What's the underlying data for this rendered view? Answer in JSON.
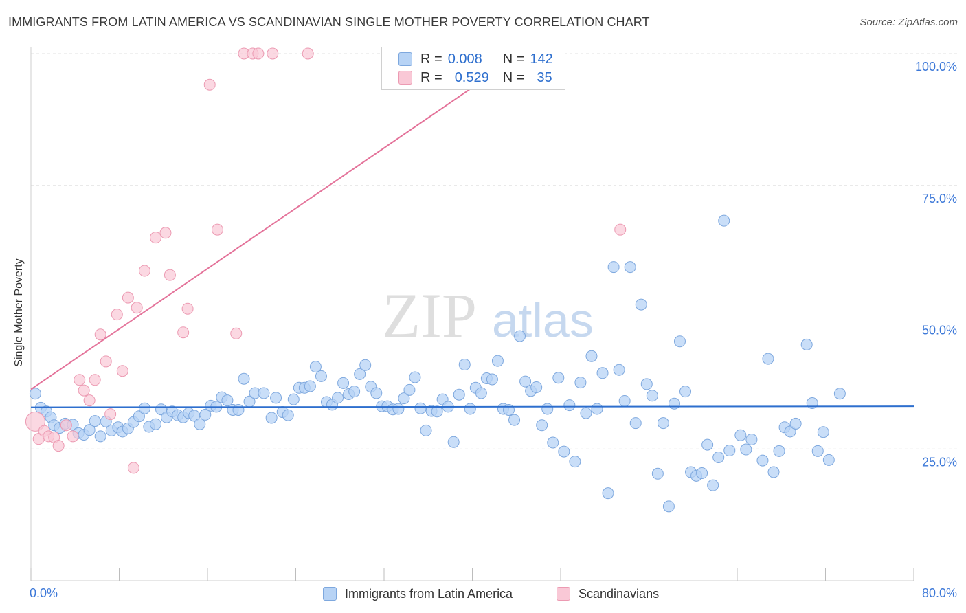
{
  "header": {
    "title": "IMMIGRANTS FROM LATIN AMERICA VS SCANDINAVIAN SINGLE MOTHER POVERTY CORRELATION CHART",
    "source": "Source: ZipAtlas.com"
  },
  "watermark": {
    "zip": "ZIP",
    "atlas": "atlas"
  },
  "legend": {
    "r_label": "R =",
    "n_label": "N =",
    "series": [
      {
        "name": "Immigrants from Latin America",
        "r": "0.008",
        "n": "142"
      },
      {
        "name": "Scandinavians",
        "r": "0.529",
        "n": "35"
      }
    ]
  },
  "colors": {
    "blue_fill": "#b7d3f5",
    "blue_stroke": "#7ea8de",
    "blue_line": "#2e6fce",
    "pink_fill": "#f9c8d6",
    "pink_stroke": "#ec9ab2",
    "pink_line": "#e4739a",
    "tick_text": "#3c78d8"
  },
  "chart_data": {
    "type": "scatter",
    "title": "IMMIGRANTS FROM LATIN AMERICA VS SCANDINAVIAN SINGLE MOTHER POVERTY CORRELATION CHART",
    "xlabel": "",
    "ylabel": "Single Mother Poverty",
    "xlim": [
      0,
      80
    ],
    "ylim": [
      0,
      100
    ],
    "x_tick_labels": [
      "0.0%",
      "80.0%"
    ],
    "y_ticks": [
      25,
      50,
      75,
      100
    ],
    "y_tick_labels": [
      "25.0%",
      "50.0%",
      "75.0%",
      "100.0%"
    ],
    "grid": true,
    "legend_position": "top-center",
    "series": [
      {
        "name": "Immigrants from Latin America",
        "r": 0.008,
        "n": 142,
        "trend": {
          "x": [
            0,
            80
          ],
          "y": [
            32.9,
            33.1
          ]
        },
        "points": [
          [
            0.4,
            35.5
          ],
          [
            0.9,
            32.8
          ],
          [
            1.4,
            32.1
          ],
          [
            1.8,
            31.0
          ],
          [
            2.1,
            29.5
          ],
          [
            2.6,
            29.0
          ],
          [
            3.1,
            29.8
          ],
          [
            3.8,
            29.6
          ],
          [
            4.3,
            28.0
          ],
          [
            4.8,
            27.7
          ],
          [
            5.3,
            28.6
          ],
          [
            5.8,
            30.3
          ],
          [
            6.3,
            27.4
          ],
          [
            6.8,
            30.2
          ],
          [
            7.3,
            28.5
          ],
          [
            7.9,
            29.1
          ],
          [
            8.3,
            28.3
          ],
          [
            8.8,
            28.9
          ],
          [
            9.3,
            30.1
          ],
          [
            9.8,
            31.2
          ],
          [
            10.3,
            32.7
          ],
          [
            10.7,
            29.2
          ],
          [
            11.3,
            29.7
          ],
          [
            11.8,
            32.5
          ],
          [
            12.3,
            31.0
          ],
          [
            12.8,
            32.1
          ],
          [
            13.3,
            31.4
          ],
          [
            13.8,
            31.0
          ],
          [
            14.3,
            31.8
          ],
          [
            14.8,
            31.3
          ],
          [
            15.3,
            29.7
          ],
          [
            15.8,
            31.5
          ],
          [
            16.3,
            33.2
          ],
          [
            16.8,
            33.0
          ],
          [
            17.3,
            34.8
          ],
          [
            17.8,
            34.2
          ],
          [
            18.3,
            32.4
          ],
          [
            18.8,
            32.4
          ],
          [
            19.3,
            38.3
          ],
          [
            19.8,
            34.0
          ],
          [
            20.3,
            35.6
          ],
          [
            21.1,
            35.6
          ],
          [
            21.8,
            30.9
          ],
          [
            22.2,
            34.7
          ],
          [
            22.8,
            32.0
          ],
          [
            23.3,
            31.4
          ],
          [
            23.8,
            34.4
          ],
          [
            24.3,
            36.6
          ],
          [
            24.8,
            36.6
          ],
          [
            25.3,
            36.9
          ],
          [
            25.8,
            40.6
          ],
          [
            26.3,
            38.8
          ],
          [
            26.8,
            33.9
          ],
          [
            27.3,
            33.4
          ],
          [
            27.8,
            34.7
          ],
          [
            28.3,
            37.5
          ],
          [
            28.8,
            35.4
          ],
          [
            29.3,
            35.9
          ],
          [
            29.8,
            39.2
          ],
          [
            30.3,
            40.9
          ],
          [
            30.8,
            36.8
          ],
          [
            31.3,
            35.6
          ],
          [
            31.8,
            33.1
          ],
          [
            32.3,
            33.1
          ],
          [
            32.8,
            32.5
          ],
          [
            33.3,
            32.6
          ],
          [
            33.8,
            34.6
          ],
          [
            34.3,
            36.2
          ],
          [
            34.8,
            38.6
          ],
          [
            35.3,
            32.7
          ],
          [
            35.8,
            28.5
          ],
          [
            36.3,
            32.2
          ],
          [
            36.8,
            32.1
          ],
          [
            37.3,
            34.4
          ],
          [
            37.8,
            33.0
          ],
          [
            38.3,
            26.3
          ],
          [
            38.8,
            35.3
          ],
          [
            39.3,
            41.0
          ],
          [
            39.8,
            32.6
          ],
          [
            40.3,
            36.6
          ],
          [
            40.8,
            35.6
          ],
          [
            41.3,
            38.4
          ],
          [
            41.8,
            38.2
          ],
          [
            42.3,
            41.7
          ],
          [
            42.8,
            32.6
          ],
          [
            43.3,
            32.4
          ],
          [
            43.8,
            30.5
          ],
          [
            44.3,
            46.4
          ],
          [
            44.8,
            37.8
          ],
          [
            45.3,
            36.0
          ],
          [
            45.8,
            36.7
          ],
          [
            46.3,
            29.5
          ],
          [
            46.8,
            32.6
          ],
          [
            47.3,
            26.2
          ],
          [
            47.8,
            38.5
          ],
          [
            48.3,
            24.5
          ],
          [
            48.8,
            33.3
          ],
          [
            49.3,
            22.6
          ],
          [
            49.8,
            37.6
          ],
          [
            50.3,
            31.8
          ],
          [
            50.8,
            42.6
          ],
          [
            51.3,
            32.6
          ],
          [
            51.8,
            39.4
          ],
          [
            52.3,
            16.6
          ],
          [
            52.8,
            59.5
          ],
          [
            53.3,
            40.0
          ],
          [
            53.8,
            34.1
          ],
          [
            54.3,
            59.5
          ],
          [
            54.8,
            29.9
          ],
          [
            55.3,
            52.4
          ],
          [
            55.8,
            37.3
          ],
          [
            56.3,
            35.1
          ],
          [
            56.8,
            20.3
          ],
          [
            57.3,
            29.9
          ],
          [
            57.8,
            14.1
          ],
          [
            58.3,
            33.6
          ],
          [
            58.8,
            45.4
          ],
          [
            59.3,
            35.9
          ],
          [
            59.8,
            20.6
          ],
          [
            60.3,
            19.9
          ],
          [
            60.8,
            20.4
          ],
          [
            61.3,
            25.8
          ],
          [
            61.8,
            18.1
          ],
          [
            62.3,
            23.4
          ],
          [
            62.8,
            68.3
          ],
          [
            63.3,
            24.7
          ],
          [
            64.3,
            27.6
          ],
          [
            64.8,
            24.9
          ],
          [
            65.3,
            26.8
          ],
          [
            66.3,
            22.8
          ],
          [
            66.8,
            42.1
          ],
          [
            67.3,
            20.6
          ],
          [
            67.8,
            24.6
          ],
          [
            68.3,
            29.1
          ],
          [
            68.8,
            28.3
          ],
          [
            69.3,
            29.8
          ],
          [
            70.3,
            44.8
          ],
          [
            70.8,
            33.7
          ],
          [
            71.3,
            24.6
          ],
          [
            71.8,
            28.2
          ],
          [
            72.3,
            22.9
          ],
          [
            73.3,
            35.5
          ]
        ]
      },
      {
        "name": "Scandinavians",
        "r": 0.529,
        "n": 35,
        "trend": {
          "x": [
            0,
            44.5
          ],
          "y": [
            36.3,
            100
          ]
        },
        "points": [
          [
            0.4,
            30.2
          ],
          [
            0.7,
            26.9
          ],
          [
            1.2,
            28.4
          ],
          [
            1.6,
            27.4
          ],
          [
            2.1,
            27.2
          ],
          [
            2.5,
            25.6
          ],
          [
            3.2,
            29.5
          ],
          [
            3.8,
            27.4
          ],
          [
            4.4,
            38.1
          ],
          [
            4.8,
            36.1
          ],
          [
            5.3,
            34.2
          ],
          [
            5.8,
            38.1
          ],
          [
            6.3,
            46.7
          ],
          [
            6.8,
            41.6
          ],
          [
            7.2,
            31.6
          ],
          [
            7.8,
            50.5
          ],
          [
            8.3,
            39.8
          ],
          [
            8.8,
            53.7
          ],
          [
            9.3,
            21.4
          ],
          [
            9.6,
            51.8
          ],
          [
            10.3,
            58.8
          ],
          [
            11.3,
            65.1
          ],
          [
            12.2,
            66.0
          ],
          [
            12.6,
            58.0
          ],
          [
            13.8,
            47.1
          ],
          [
            14.2,
            51.6
          ],
          [
            16.2,
            94.1
          ],
          [
            16.9,
            66.6
          ],
          [
            18.6,
            46.9
          ],
          [
            19.3,
            100
          ],
          [
            20.1,
            100
          ],
          [
            20.6,
            100
          ],
          [
            21.9,
            100
          ],
          [
            25.1,
            100
          ],
          [
            53.4,
            66.6
          ]
        ]
      }
    ]
  }
}
